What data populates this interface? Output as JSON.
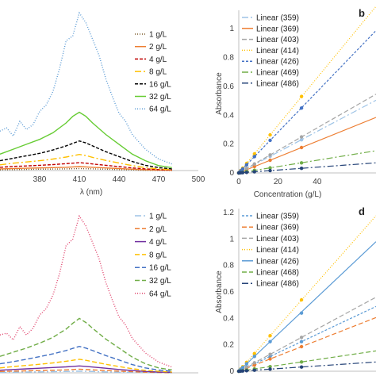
{
  "chart_data": [
    {
      "panel": "a",
      "type": "line",
      "label": "",
      "xlabel": "λ (nm)",
      "ylabel": "",
      "xlim": [
        350,
        500
      ],
      "x_ticks": [
        "380",
        "410",
        "440",
        "470",
        "500"
      ],
      "x_tick_values": [
        380,
        410,
        440,
        470,
        500
      ],
      "ylim": [
        0,
        1.0
      ],
      "legend_position": "right",
      "series": [
        {
          "name": "1 g/L",
          "color": "#7a5a2a",
          "dash": "1,2",
          "x": [
            350,
            360,
            370,
            380,
            390,
            400,
            405,
            410,
            415,
            420,
            430,
            440,
            450,
            460,
            470,
            480
          ],
          "y": [
            0.005,
            0.006,
            0.007,
            0.008,
            0.009,
            0.01,
            0.011,
            0.012,
            0.011,
            0.01,
            0.008,
            0.006,
            0.004,
            0.002,
            0.001,
            0.0
          ]
        },
        {
          "name": "2 g/L",
          "color": "#ed7d31",
          "dash": "",
          "x": [
            350,
            360,
            370,
            380,
            390,
            400,
            405,
            410,
            415,
            420,
            430,
            440,
            450,
            460,
            470,
            480
          ],
          "y": [
            0.01,
            0.012,
            0.014,
            0.016,
            0.018,
            0.02,
            0.022,
            0.024,
            0.022,
            0.02,
            0.016,
            0.012,
            0.008,
            0.005,
            0.003,
            0.002
          ]
        },
        {
          "name": "4 g/L",
          "color": "#c00000",
          "dash": "4,2",
          "x": [
            350,
            360,
            370,
            380,
            390,
            400,
            405,
            410,
            415,
            420,
            430,
            440,
            450,
            460,
            470,
            480
          ],
          "y": [
            0.02,
            0.025,
            0.028,
            0.032,
            0.036,
            0.042,
            0.045,
            0.048,
            0.045,
            0.04,
            0.032,
            0.024,
            0.016,
            0.01,
            0.006,
            0.004
          ]
        },
        {
          "name": "8 g/L",
          "color": "#ffc000",
          "dash": "8,3,2,3",
          "x": [
            350,
            360,
            370,
            380,
            390,
            400,
            405,
            410,
            415,
            420,
            430,
            440,
            450,
            460,
            470,
            480
          ],
          "y": [
            0.035,
            0.045,
            0.052,
            0.06,
            0.07,
            0.082,
            0.09,
            0.098,
            0.092,
            0.08,
            0.062,
            0.046,
            0.03,
            0.018,
            0.01,
            0.006
          ]
        },
        {
          "name": "16 g/L",
          "color": "#000000",
          "dash": "4,2",
          "x": [
            350,
            360,
            370,
            380,
            390,
            400,
            405,
            410,
            415,
            420,
            430,
            440,
            450,
            460,
            470,
            480
          ],
          "y": [
            0.06,
            0.075,
            0.09,
            0.105,
            0.125,
            0.15,
            0.165,
            0.18,
            0.168,
            0.15,
            0.115,
            0.085,
            0.055,
            0.032,
            0.018,
            0.01
          ]
        },
        {
          "name": "32 g/L",
          "color": "#66cc33",
          "dash": "",
          "x": [
            350,
            360,
            370,
            380,
            390,
            400,
            405,
            410,
            415,
            420,
            430,
            440,
            450,
            460,
            470,
            480
          ],
          "y": [
            0.1,
            0.13,
            0.16,
            0.19,
            0.23,
            0.29,
            0.33,
            0.355,
            0.33,
            0.29,
            0.22,
            0.16,
            0.1,
            0.06,
            0.03,
            0.018
          ]
        },
        {
          "name": "64 g/L",
          "color": "#5b9bd5",
          "dash": "1,2",
          "x": [
            350,
            355,
            360,
            365,
            370,
            375,
            380,
            385,
            390,
            395,
            400,
            405,
            410,
            415,
            420,
            425,
            430,
            435,
            440,
            445,
            450,
            460,
            470,
            480
          ],
          "y": [
            0.24,
            0.26,
            0.21,
            0.3,
            0.25,
            0.28,
            0.36,
            0.4,
            0.48,
            0.62,
            0.79,
            0.82,
            0.96,
            0.9,
            0.8,
            0.7,
            0.56,
            0.45,
            0.35,
            0.3,
            0.22,
            0.13,
            0.07,
            0.04
          ]
        }
      ]
    },
    {
      "panel": "b",
      "type": "scatter",
      "label": "b",
      "xlabel": "Concentration (g/L)",
      "ylabel": "Absorbance",
      "xlim": [
        0,
        70
      ],
      "x_ticks": [
        "0",
        "20",
        "40"
      ],
      "x_tick_values": [
        0,
        20,
        40
      ],
      "ylim": [
        0,
        1.1
      ],
      "y_ticks": [
        "0",
        "0.2",
        "0.4",
        "0.6",
        "0.8",
        "1"
      ],
      "y_tick_values": [
        0,
        0.2,
        0.4,
        0.6,
        0.8,
        1
      ],
      "legend_position": "top-left",
      "series": [
        {
          "name": "Linear (359)",
          "color": "#9dc3e6",
          "dash": "8,3,2,3",
          "slope": 0.0072,
          "x": [
            0,
            1,
            2,
            4,
            8,
            16,
            32
          ],
          "y": [
            0.0,
            0.008,
            0.015,
            0.029,
            0.058,
            0.115,
            0.23
          ]
        },
        {
          "name": "Linear (369)",
          "color": "#ed7d31",
          "dash": "",
          "slope": 0.0055,
          "x": [
            0,
            1,
            2,
            4,
            8,
            16,
            32
          ],
          "y": [
            0.0,
            0.006,
            0.011,
            0.022,
            0.044,
            0.088,
            0.176
          ]
        },
        {
          "name": "Linear (403)",
          "color": "#a5a5a5",
          "dash": "6,3",
          "slope": 0.0078,
          "x": [
            0,
            1,
            2,
            4,
            8,
            16,
            32
          ],
          "y": [
            0.0,
            0.008,
            0.016,
            0.031,
            0.062,
            0.125,
            0.25
          ]
        },
        {
          "name": "Linear (414)",
          "color": "#ffc000",
          "dash": "1,2",
          "slope": 0.0165,
          "x": [
            0,
            1,
            2,
            4,
            8,
            16,
            32
          ],
          "y": [
            0.0,
            0.017,
            0.033,
            0.066,
            0.132,
            0.264,
            0.53
          ]
        },
        {
          "name": "Linear (426)",
          "color": "#4472c4",
          "dash": "3,2",
          "slope": 0.0141,
          "x": [
            0,
            1,
            2,
            4,
            8,
            16,
            32
          ],
          "y": [
            0.0,
            0.014,
            0.028,
            0.056,
            0.113,
            0.226,
            0.45
          ]
        },
        {
          "name": "Linear (469)",
          "color": "#70ad47",
          "dash": "8,3,2,3",
          "slope": 0.0022,
          "x": [
            0,
            1,
            2,
            4,
            8,
            16,
            32
          ],
          "y": [
            0.0,
            0.002,
            0.004,
            0.009,
            0.018,
            0.035,
            0.07
          ]
        },
        {
          "name": "Linear (486)",
          "color": "#264478",
          "dash": "8,3,2,3",
          "slope": 0.001,
          "x": [
            0,
            1,
            2,
            4,
            8,
            16,
            32
          ],
          "y": [
            0.0,
            0.001,
            0.002,
            0.004,
            0.008,
            0.016,
            0.032
          ]
        }
      ]
    },
    {
      "panel": "c",
      "type": "line",
      "label": "",
      "xlabel": "",
      "ylabel": "",
      "xlim": [
        350,
        500
      ],
      "ylim": [
        0,
        1.0
      ],
      "legend_position": "right",
      "series": [
        {
          "name": "1 g/L",
          "color": "#9dc3e6",
          "dash": "8,3,2,3",
          "x": [
            350,
            360,
            370,
            380,
            390,
            400,
            405,
            410,
            415,
            420,
            430,
            440,
            450,
            460,
            470,
            480
          ],
          "y": [
            0.003,
            0.004,
            0.005,
            0.006,
            0.007,
            0.008,
            0.009,
            0.01,
            0.009,
            0.008,
            0.006,
            0.004,
            0.003,
            0.002,
            0.001,
            0.0
          ]
        },
        {
          "name": "2 g/L",
          "color": "#ed7d31",
          "dash": "6,3",
          "x": [
            350,
            360,
            370,
            380,
            390,
            400,
            405,
            410,
            415,
            420,
            430,
            440,
            450,
            460,
            470,
            480
          ],
          "y": [
            0.008,
            0.01,
            0.012,
            0.014,
            0.016,
            0.018,
            0.02,
            0.022,
            0.02,
            0.018,
            0.014,
            0.01,
            0.007,
            0.004,
            0.002,
            0.001
          ]
        },
        {
          "name": "4 g/L",
          "color": "#7030a0",
          "dash": "",
          "x": [
            350,
            360,
            370,
            380,
            390,
            400,
            405,
            410,
            415,
            420,
            430,
            440,
            450,
            460,
            470,
            480
          ],
          "y": [
            0.016,
            0.02,
            0.024,
            0.028,
            0.032,
            0.036,
            0.039,
            0.042,
            0.039,
            0.035,
            0.028,
            0.02,
            0.014,
            0.008,
            0.005,
            0.003
          ]
        },
        {
          "name": "8 g/L",
          "color": "#ffc000",
          "dash": "6,3",
          "x": [
            350,
            360,
            370,
            380,
            390,
            400,
            405,
            410,
            415,
            420,
            430,
            440,
            450,
            460,
            470,
            480
          ],
          "y": [
            0.03,
            0.038,
            0.045,
            0.052,
            0.06,
            0.07,
            0.076,
            0.082,
            0.076,
            0.068,
            0.052,
            0.038,
            0.025,
            0.015,
            0.009,
            0.005
          ]
        },
        {
          "name": "16 g/L",
          "color": "#4472c4",
          "dash": "6,3",
          "x": [
            350,
            360,
            370,
            380,
            390,
            400,
            405,
            410,
            415,
            420,
            430,
            440,
            450,
            460,
            470,
            480
          ],
          "y": [
            0.055,
            0.068,
            0.082,
            0.098,
            0.115,
            0.135,
            0.148,
            0.16,
            0.15,
            0.135,
            0.105,
            0.078,
            0.05,
            0.03,
            0.017,
            0.01
          ]
        },
        {
          "name": "32 g/L",
          "color": "#70ad47",
          "dash": "6,3",
          "x": [
            350,
            360,
            370,
            380,
            390,
            400,
            405,
            410,
            415,
            420,
            430,
            440,
            450,
            460,
            470,
            480
          ],
          "y": [
            0.1,
            0.125,
            0.15,
            0.18,
            0.215,
            0.265,
            0.3,
            0.33,
            0.305,
            0.27,
            0.205,
            0.15,
            0.095,
            0.055,
            0.03,
            0.018
          ]
        },
        {
          "name": "64 g/L",
          "color": "#e0406a",
          "dash": "1,2",
          "x": [
            350,
            355,
            360,
            365,
            370,
            375,
            380,
            385,
            390,
            395,
            400,
            405,
            410,
            415,
            420,
            425,
            430,
            435,
            440,
            445,
            450,
            460,
            470,
            480
          ],
          "y": [
            0.23,
            0.24,
            0.2,
            0.28,
            0.23,
            0.27,
            0.35,
            0.39,
            0.47,
            0.6,
            0.77,
            0.81,
            0.95,
            0.89,
            0.79,
            0.69,
            0.55,
            0.44,
            0.34,
            0.29,
            0.21,
            0.12,
            0.065,
            0.035
          ]
        }
      ]
    },
    {
      "panel": "d",
      "type": "scatter",
      "label": "d",
      "xlabel": "",
      "ylabel": "Absorbance",
      "xlim": [
        0,
        70
      ],
      "ylim": [
        0,
        1.2
      ],
      "y_ticks": [
        "0",
        "0.2",
        "0.4",
        "0.6",
        "0.8",
        "1",
        "1.2"
      ],
      "y_tick_values": [
        0,
        0.2,
        0.4,
        0.6,
        0.8,
        1,
        1.2
      ],
      "legend_position": "top-left",
      "series": [
        {
          "name": "Linear (359)",
          "color": "#5b9bd5",
          "dash": "3,2",
          "slope": 0.007,
          "x": [
            0,
            1,
            2,
            4,
            8,
            16,
            32
          ],
          "y": [
            0.0,
            0.007,
            0.014,
            0.028,
            0.056,
            0.112,
            0.224
          ]
        },
        {
          "name": "Linear (369)",
          "color": "#ed7d31",
          "dash": "6,3",
          "slope": 0.0058,
          "x": [
            0,
            1,
            2,
            4,
            8,
            16,
            32
          ],
          "y": [
            0.0,
            0.006,
            0.012,
            0.023,
            0.046,
            0.093,
            0.186
          ]
        },
        {
          "name": "Linear (403)",
          "color": "#a5a5a5",
          "dash": "6,3",
          "slope": 0.008,
          "x": [
            0,
            1,
            2,
            4,
            8,
            16,
            32
          ],
          "y": [
            0.0,
            0.008,
            0.016,
            0.032,
            0.064,
            0.128,
            0.256
          ]
        },
        {
          "name": "Linear (414)",
          "color": "#ffc000",
          "dash": "1,2",
          "slope": 0.0168,
          "x": [
            0,
            1,
            2,
            4,
            8,
            16,
            32
          ],
          "y": [
            0.0,
            0.017,
            0.034,
            0.067,
            0.134,
            0.269,
            0.54
          ]
        },
        {
          "name": "Linear (426)",
          "color": "#5b9bd5",
          "dash": "",
          "slope": 0.014,
          "x": [
            0,
            1,
            2,
            4,
            8,
            16,
            32
          ],
          "y": [
            0.0,
            0.014,
            0.028,
            0.056,
            0.112,
            0.224,
            0.44
          ]
        },
        {
          "name": "Linear (468)",
          "color": "#70ad47",
          "dash": "6,3",
          "slope": 0.0022,
          "x": [
            0,
            1,
            2,
            4,
            8,
            16,
            32
          ],
          "y": [
            0.0,
            0.002,
            0.004,
            0.009,
            0.018,
            0.035,
            0.07
          ]
        },
        {
          "name": "Linear (486)",
          "color": "#264478",
          "dash": "8,3,2,3",
          "slope": 0.001,
          "x": [
            0,
            1,
            2,
            4,
            8,
            16,
            32
          ],
          "y": [
            0.0,
            0.001,
            0.002,
            0.004,
            0.008,
            0.016,
            0.032
          ]
        }
      ]
    }
  ]
}
